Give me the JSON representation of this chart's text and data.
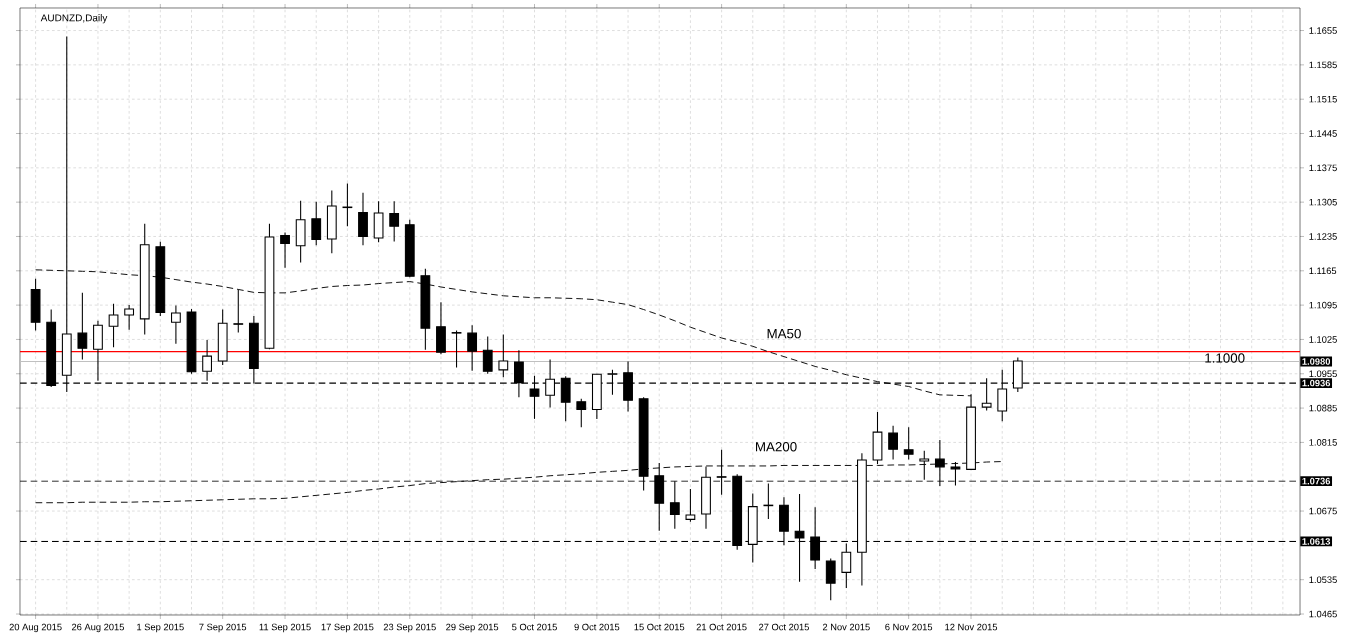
{
  "chart_data": {
    "type": "candlestick",
    "title": "AUDNZD,Daily",
    "categories": [
      "20 Aug 2015",
      null,
      null,
      null,
      "26 Aug 2015",
      null,
      null,
      null,
      "1 Sep 2015",
      null,
      null,
      null,
      "7 Sep 2015",
      null,
      null,
      null,
      "11 Sep 2015",
      null,
      null,
      null,
      "17 Sep 2015",
      null,
      null,
      null,
      "23 Sep 2015",
      null,
      null,
      null,
      "29 Sep 2015",
      null,
      null,
      null,
      "5 Oct 2015",
      null,
      null,
      null,
      "9 Oct 2015",
      null,
      null,
      null,
      "15 Oct 2015",
      null,
      null,
      null,
      "21 Oct 2015",
      null,
      null,
      null,
      "27 Oct 2015",
      null,
      null,
      null,
      "2 Nov 2015",
      null,
      null,
      null,
      "6 Nov 2015",
      null,
      null,
      null,
      "12 Nov 2015",
      null,
      null,
      null
    ],
    "ohlc": [
      [
        1.1127,
        1.1149,
        1.1043,
        1.106
      ],
      [
        1.106,
        1.1086,
        1.0928,
        1.0931
      ],
      [
        1.0952,
        1.1643,
        1.0918,
        1.1036
      ],
      [
        1.1038,
        1.112,
        1.0984,
        1.1007
      ],
      [
        1.1005,
        1.1063,
        1.0941,
        1.1054
      ],
      [
        1.1052,
        1.1098,
        1.1009,
        1.1075
      ],
      [
        1.1075,
        1.1095,
        1.1045,
        1.1087
      ],
      [
        1.1067,
        1.1261,
        1.1035,
        1.1218
      ],
      [
        1.1214,
        1.1224,
        1.1073,
        1.108
      ],
      [
        1.106,
        1.1094,
        1.1016,
        1.1079
      ],
      [
        1.1081,
        1.1087,
        1.0955,
        1.0959
      ],
      [
        1.096,
        1.1024,
        1.0941,
        1.0991
      ],
      [
        1.0981,
        1.1086,
        1.0973,
        1.1058
      ],
      [
        1.1057,
        1.1127,
        1.1039,
        1.1056
      ],
      [
        1.1058,
        1.1073,
        1.0935,
        1.0966
      ],
      [
        1.1007,
        1.1261,
        1.1005,
        1.1234
      ],
      [
        1.1237,
        1.1243,
        1.1171,
        1.1221
      ],
      [
        1.1216,
        1.1308,
        1.1182,
        1.1269
      ],
      [
        1.1271,
        1.1306,
        1.1217,
        1.1229
      ],
      [
        1.123,
        1.1329,
        1.1201,
        1.1297
      ],
      [
        1.1295,
        1.1343,
        1.1256,
        1.1294
      ],
      [
        1.1284,
        1.1324,
        1.1217,
        1.1235
      ],
      [
        1.1232,
        1.1307,
        1.1223,
        1.1283
      ],
      [
        1.1282,
        1.1307,
        1.1225,
        1.1256
      ],
      [
        1.1259,
        1.1269,
        1.1152,
        1.1154
      ],
      [
        1.1155,
        1.1169,
        1.1004,
        1.1048
      ],
      [
        1.1051,
        1.1101,
        1.0995,
        1.0999
      ],
      [
        1.1039,
        1.1043,
        1.0968,
        1.1038
      ],
      [
        1.1038,
        1.1054,
        1.0961,
        1.1001
      ],
      [
        1.1003,
        1.1031,
        1.0955,
        1.096
      ],
      [
        1.0963,
        1.1035,
        1.0948,
        1.0981
      ],
      [
        1.0979,
        1.1003,
        1.0907,
        1.0937
      ],
      [
        1.0924,
        1.0951,
        1.0863,
        1.0909
      ],
      [
        1.0911,
        1.0984,
        1.0886,
        1.0944
      ],
      [
        1.0946,
        1.095,
        1.0858,
        1.0897
      ],
      [
        1.0898,
        1.0904,
        1.0846,
        1.0882
      ],
      [
        1.0882,
        1.0954,
        1.0863,
        1.0954
      ],
      [
        1.0954,
        1.0963,
        1.0912,
        1.0955
      ],
      [
        1.0957,
        1.098,
        1.0878,
        1.0901
      ],
      [
        1.0904,
        1.0907,
        1.0717,
        1.0746
      ],
      [
        1.0747,
        1.0773,
        1.0635,
        1.0691
      ],
      [
        1.0692,
        1.0736,
        1.0639,
        1.0668
      ],
      [
        1.0658,
        1.072,
        1.0653,
        1.0667
      ],
      [
        1.0669,
        1.0766,
        1.0639,
        1.0744
      ],
      [
        1.0745,
        1.08,
        1.0708,
        1.0744
      ],
      [
        1.0746,
        1.075,
        1.0596,
        1.0605
      ],
      [
        1.0607,
        1.0711,
        1.057,
        1.0684
      ],
      [
        1.0686,
        1.0731,
        1.0659,
        1.0687
      ],
      [
        1.0687,
        1.0703,
        1.0605,
        1.0634
      ],
      [
        1.0634,
        1.071,
        1.0531,
        1.062
      ],
      [
        1.0622,
        1.0683,
        1.0557,
        1.0575
      ],
      [
        1.0573,
        1.0578,
        1.0493,
        1.0528
      ],
      [
        1.055,
        1.0609,
        1.0518,
        1.0591
      ],
      [
        1.0591,
        1.0793,
        1.0523,
        1.0779
      ],
      [
        1.0779,
        1.0877,
        1.0771,
        1.0836
      ],
      [
        1.0834,
        1.0849,
        1.078,
        1.0801
      ],
      [
        1.08,
        1.0846,
        1.078,
        1.0791
      ],
      [
        1.0777,
        1.0798,
        1.0739,
        1.0781
      ],
      [
        1.0781,
        1.082,
        1.0726,
        1.0765
      ],
      [
        1.0765,
        1.0775,
        1.0727,
        1.0761
      ],
      [
        1.076,
        1.0913,
        1.076,
        1.0887
      ],
      [
        1.0887,
        1.0946,
        1.088,
        1.0895
      ],
      [
        1.0879,
        1.0963,
        1.0858,
        1.0924
      ],
      [
        1.0926,
        1.0988,
        1.0918,
        1.0981
      ]
    ],
    "series": [
      {
        "type": "line",
        "name": "MA50",
        "color": "#000000",
        "line_style": "dashed",
        "values": [
          1.1167,
          1.1166,
          1.1165,
          1.1164,
          1.1163,
          1.116,
          1.1157,
          1.1155,
          1.1152,
          1.1147,
          1.1142,
          1.1138,
          1.1133,
          1.1127,
          1.1121,
          1.112,
          1.112,
          1.1124,
          1.1129,
          1.1133,
          1.1135,
          1.1136,
          1.1139,
          1.1141,
          1.1143,
          1.1138,
          1.1132,
          1.1127,
          1.1122,
          1.1118,
          1.1114,
          1.1112,
          1.111,
          1.111,
          1.1109,
          1.1108,
          1.1106,
          1.1101,
          1.1096,
          1.1086,
          1.1075,
          1.1063,
          1.105,
          1.1039,
          1.1028,
          1.102,
          1.1011,
          1.1,
          1.099,
          1.098,
          1.097,
          1.0962,
          1.0953,
          1.0946,
          1.0939,
          1.0934,
          1.0929,
          1.092,
          1.0912,
          1.0911,
          1.091,
          null,
          null,
          null
        ]
      },
      {
        "type": "line",
        "name": "MA200",
        "color": "#000000",
        "line_style": "dashed",
        "values": [
          1.0692,
          1.0692,
          1.0692,
          1.0693,
          1.0693,
          1.0693,
          1.0693,
          1.0694,
          1.0694,
          1.0695,
          1.0696,
          1.0697,
          1.0698,
          1.0699,
          1.07,
          1.07,
          1.0701,
          1.0704,
          1.0707,
          1.071,
          1.0713,
          1.0717,
          1.072,
          1.0724,
          1.0727,
          1.0731,
          1.0733,
          1.0735,
          1.0737,
          1.0739,
          1.074,
          1.0742,
          1.0744,
          1.0747,
          1.0749,
          1.0751,
          1.0754,
          1.0756,
          1.0758,
          1.0761,
          1.0763,
          1.0765,
          1.0766,
          1.0767,
          1.0767,
          1.0767,
          1.0767,
          1.0767,
          1.0768,
          1.0768,
          1.0768,
          1.0768,
          1.0768,
          1.0768,
          1.0768,
          1.0769,
          1.0769,
          1.077,
          1.0771,
          1.0772,
          1.0773,
          1.0775,
          1.0776,
          null
        ]
      }
    ],
    "ylim": [
      1.0463,
      1.1701
    ],
    "yticks": [
      1.0465,
      1.0535,
      1.0675,
      1.0815,
      1.0885,
      1.0955,
      1.1025,
      1.1095,
      1.1165,
      1.1235,
      1.1305,
      1.1375,
      1.1445,
      1.1515,
      1.1585,
      1.1655
    ],
    "grid": true,
    "ref_lines": [
      {
        "axis": "y",
        "value": 1.0936,
        "label": "1.0936",
        "color": "#000000",
        "line_style": "dashed"
      },
      {
        "axis": "y",
        "value": 1.0736,
        "label": "1.0736",
        "color": "#000000",
        "line_style": "dashed"
      },
      {
        "axis": "y",
        "value": 1.0613,
        "label": "1.0613",
        "color": "#000000",
        "line_style": "dashed"
      },
      {
        "axis": "y",
        "value": 1.098,
        "label": "1.0980",
        "color": "#c0c0c0",
        "line_style": "solid"
      },
      {
        "axis": "y",
        "value": 1.1,
        "label": "1.1000",
        "color": "#ff0000",
        "line_style": "solid"
      }
    ]
  }
}
